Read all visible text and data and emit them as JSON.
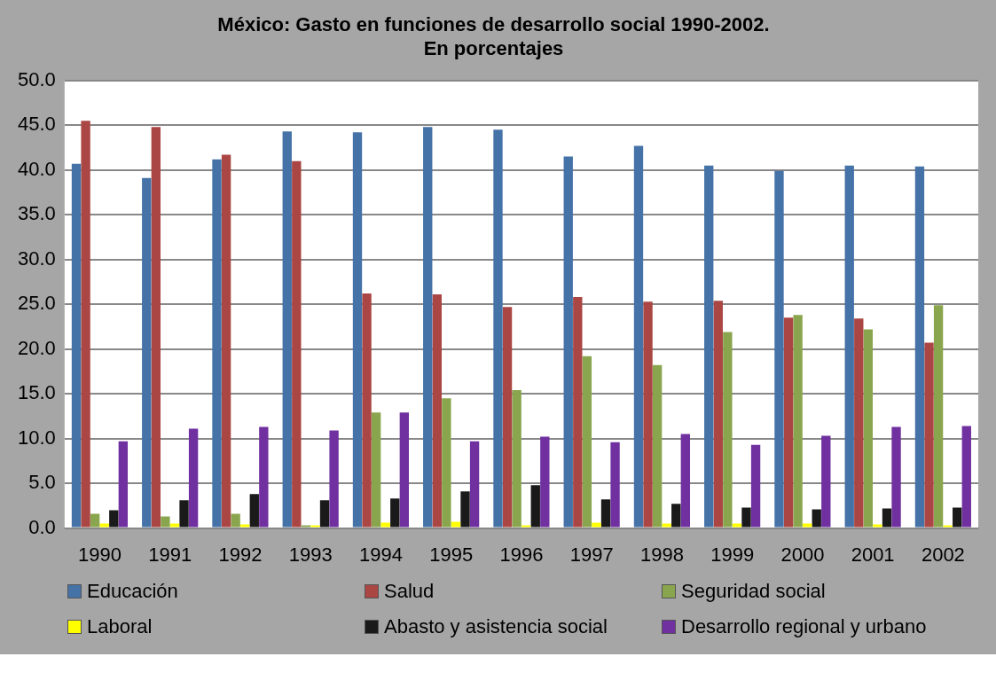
{
  "chart_data": {
    "type": "bar",
    "title": "México: Gasto en funciones de desarrollo social 1990-2002.\nEn porcentajes",
    "categories": [
      "1990",
      "1991",
      "1992",
      "1993",
      "1994",
      "1995",
      "1996",
      "1997",
      "1998",
      "1999",
      "2000",
      "2001",
      "2002"
    ],
    "series": [
      {
        "name": "Educación",
        "color": "#4572a7",
        "values": [
          40.7,
          39.1,
          41.2,
          44.3,
          44.2,
          44.8,
          44.5,
          41.5,
          42.7,
          40.5,
          39.9,
          40.5,
          40.4
        ]
      },
      {
        "name": "Salud",
        "color": "#aa4643",
        "values": [
          45.5,
          44.8,
          41.7,
          41.0,
          26.2,
          26.1,
          24.7,
          25.8,
          25.3,
          25.4,
          23.5,
          23.4,
          20.7
        ]
      },
      {
        "name": "Seguridad social",
        "color": "#89a54e",
        "values": [
          1.6,
          1.3,
          1.6,
          0.3,
          12.9,
          14.5,
          15.4,
          19.2,
          18.2,
          21.9,
          23.8,
          22.2,
          24.9
        ]
      },
      {
        "name": "Laboral",
        "color": "#ffff00",
        "values": [
          0.5,
          0.5,
          0.4,
          0.3,
          0.6,
          0.7,
          0.3,
          0.6,
          0.5,
          0.5,
          0.5,
          0.4,
          0.3
        ]
      },
      {
        "name": "Abasto y asistencia social",
        "color": "#1a1a1a",
        "values": [
          2.0,
          3.1,
          3.8,
          3.1,
          3.3,
          4.1,
          4.8,
          3.2,
          2.7,
          2.3,
          2.1,
          2.2,
          2.3
        ]
      },
      {
        "name": "Desarrollo regional y urbano",
        "color": "#7030a0",
        "values": [
          9.7,
          11.1,
          11.3,
          10.9,
          12.9,
          9.7,
          10.2,
          9.6,
          10.5,
          9.3,
          10.3,
          11.3,
          11.4
        ]
      }
    ],
    "ylim": [
      0,
      50
    ],
    "yticks": [
      {
        "value": 0,
        "label": "0.0"
      },
      {
        "value": 5,
        "label": "5.0"
      },
      {
        "value": 10,
        "label": "10.0"
      },
      {
        "value": 15,
        "label": "15.0"
      },
      {
        "value": 20,
        "label": "20.0"
      },
      {
        "value": 25,
        "label": "25.0"
      },
      {
        "value": 30,
        "label": "30.0"
      },
      {
        "value": 35,
        "label": "35.0"
      },
      {
        "value": 40,
        "label": "40.0"
      },
      {
        "value": 45,
        "label": "45.0"
      },
      {
        "value": 50,
        "label": "50.0"
      }
    ],
    "grid": "y",
    "legend": "bottom"
  }
}
